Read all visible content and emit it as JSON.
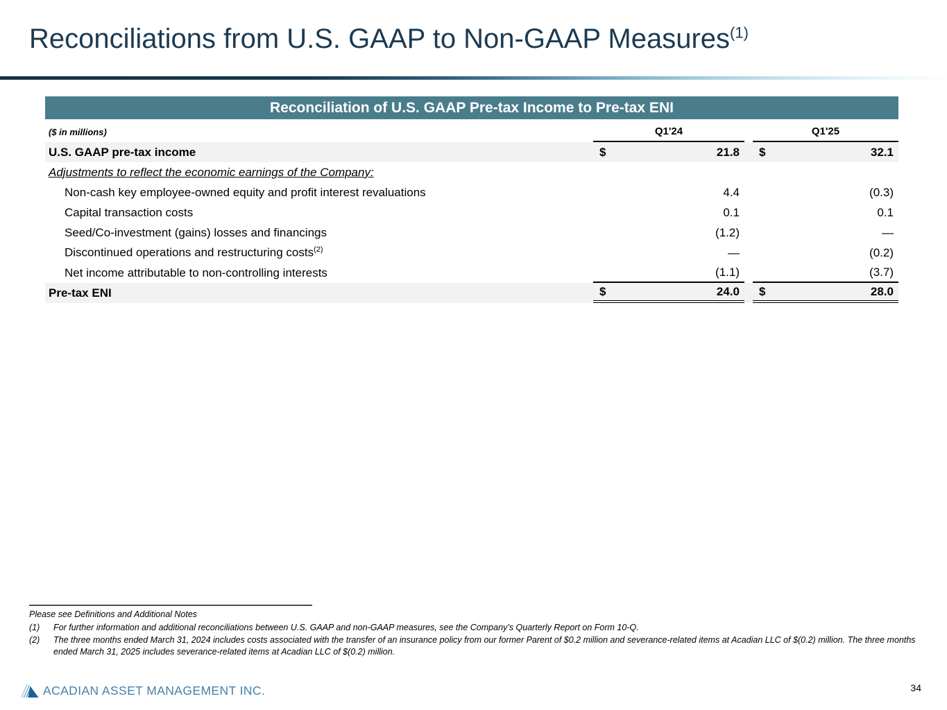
{
  "slide": {
    "title": "Reconciliations from U.S. GAAP to Non-GAAP Measures",
    "title_superscript": "(1)"
  },
  "table": {
    "header": "Reconciliation of U.S. GAAP Pre-tax Income to Pre-tax ENI",
    "units_label": "($ in millions)",
    "columns": [
      "Q1'24",
      "Q1'25"
    ],
    "rows": [
      {
        "label": "U.S. GAAP pre-tax income",
        "style": "total",
        "dollar": true,
        "q124": "21.8",
        "q125": "32.1"
      },
      {
        "label": "Adjustments to reflect the economic earnings of the Company:",
        "style": "section",
        "q124": "",
        "q125": ""
      },
      {
        "label": "Non-cash key employee-owned equity and profit interest revaluations",
        "style": "indent",
        "q124": "4.4",
        "q125": "(0.3)"
      },
      {
        "label": "Capital transaction costs",
        "style": "indent",
        "q124": "0.1",
        "q125": "0.1"
      },
      {
        "label": "Seed/Co-investment (gains) losses and financings",
        "style": "indent",
        "q124": "(1.2)",
        "q125": "—"
      },
      {
        "label": "Discontinued operations and restructuring costs",
        "label_sup": "(2)",
        "style": "indent",
        "q124": "—",
        "q125": "(0.2)"
      },
      {
        "label": "Net income attributable to non-controlling interests",
        "style": "indent underline",
        "q124": "(1.1)",
        "q125": "(3.7)"
      },
      {
        "label": "Pre-tax ENI",
        "style": "total dbl",
        "dollar": true,
        "q124": "24.0",
        "q125": "28.0"
      }
    ]
  },
  "footnotes": {
    "intro": "Please see Definitions and Additional Notes",
    "items": [
      {
        "num": "(1)",
        "text": "For further information and additional reconciliations between U.S. GAAP and non-GAAP measures, see the Company’s Quarterly Report on Form 10-Q."
      },
      {
        "num": "(2)",
        "text": "The three months ended March 31, 2024 includes costs associated with the transfer of an insurance policy from our former Parent of $0.2 million and severance-related items at Acadian LLC of $(0.2) million. The three months ended March 31, 2025 includes severance-related items at Acadian LLC of $(0.2) million."
      }
    ]
  },
  "footer": {
    "company": "ACADIAN ASSET MANAGEMENT INC.",
    "page_number": "34"
  },
  "colors": {
    "title_navy": "#1b3a52",
    "table_header_teal": "#4a7d8c",
    "row_highlight_gray": "#f2f2f2",
    "logo_blue": "#4381ab"
  }
}
